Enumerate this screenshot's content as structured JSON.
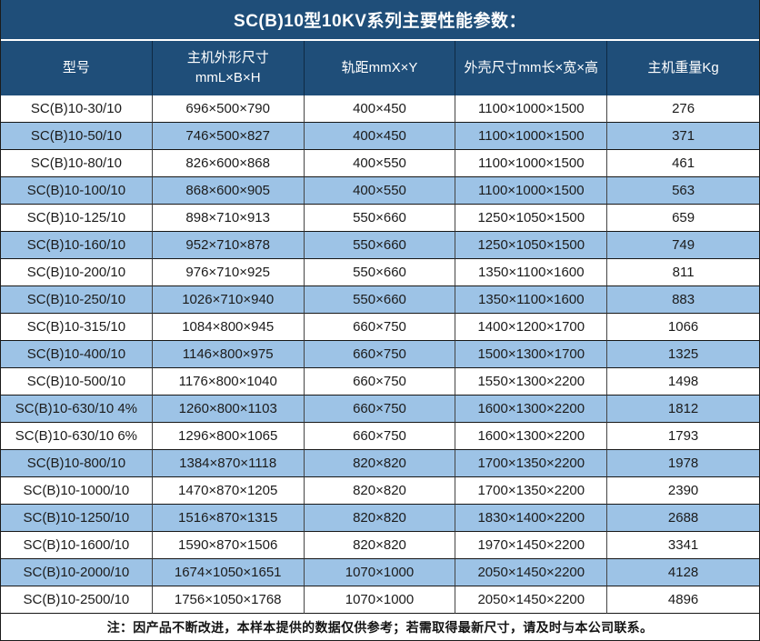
{
  "title": "SC(B)10型10KV系列主要性能参数：",
  "colors": {
    "header_bg": "#1F4E79",
    "alt_row_bg": "#9DC3E6",
    "grid_line": "#161616"
  },
  "table": {
    "headers": {
      "model": "型号",
      "dims_line1": "主机外形尺寸",
      "dims_line2": "mmL×B×H",
      "rail": "轨距mmX×Y",
      "shell": "外壳尺寸mm长×宽×高",
      "weight": "主机重量Kg"
    },
    "rows": [
      [
        "SC(B)10-30/10",
        "696×500×790",
        "400×450",
        "1100×1000×1500",
        "276"
      ],
      [
        "SC(B)10-50/10",
        "746×500×827",
        "400×450",
        "1100×1000×1500",
        "371"
      ],
      [
        "SC(B)10-80/10",
        "826×600×868",
        "400×550",
        "1100×1000×1500",
        "461"
      ],
      [
        "SC(B)10-100/10",
        "868×600×905",
        "400×550",
        "1100×1000×1500",
        "563"
      ],
      [
        "SC(B)10-125/10",
        "898×710×913",
        "550×660",
        "1250×1050×1500",
        "659"
      ],
      [
        "SC(B)10-160/10",
        "952×710×878",
        "550×660",
        "1250×1050×1500",
        "749"
      ],
      [
        "SC(B)10-200/10",
        "976×710×925",
        "550×660",
        "1350×1100×1600",
        "811"
      ],
      [
        "SC(B)10-250/10",
        "1026×710×940",
        "550×660",
        "1350×1100×1600",
        "883"
      ],
      [
        "SC(B)10-315/10",
        "1084×800×945",
        "660×750",
        "1400×1200×1700",
        "1066"
      ],
      [
        "SC(B)10-400/10",
        "1146×800×975",
        "660×750",
        "1500×1300×1700",
        "1325"
      ],
      [
        "SC(B)10-500/10",
        "1176×800×1040",
        "660×750",
        "1550×1300×2200",
        "1498"
      ],
      [
        "SC(B)10-630/10 4%",
        "1260×800×1103",
        "660×750",
        "1600×1300×2200",
        "1812"
      ],
      [
        "SC(B)10-630/10 6%",
        "1296×800×1065",
        "660×750",
        "1600×1300×2200",
        "1793"
      ],
      [
        "SC(B)10-800/10",
        "1384×870×1118",
        "820×820",
        "1700×1350×2200",
        "1978"
      ],
      [
        "SC(B)10-1000/10",
        "1470×870×1205",
        "820×820",
        "1700×1350×2200",
        "2390"
      ],
      [
        "SC(B)10-1250/10",
        "1516×870×1315",
        "820×820",
        "1830×1400×2200",
        "2688"
      ],
      [
        "SC(B)10-1600/10",
        "1590×870×1506",
        "820×820",
        "1970×1450×2200",
        "3341"
      ],
      [
        "SC(B)10-2000/10",
        "1674×1050×1651",
        "1070×1000",
        "2050×1450×2200",
        "4128"
      ],
      [
        "SC(B)10-2500/10",
        "1756×1050×1768",
        "1070×1000",
        "2050×1450×2200",
        "4896"
      ]
    ]
  },
  "footer": {
    "note": "注：因产品不断改进，本样本提供的数据仅供参考；若需取得最新尺寸，请及时与本公司联系。"
  }
}
